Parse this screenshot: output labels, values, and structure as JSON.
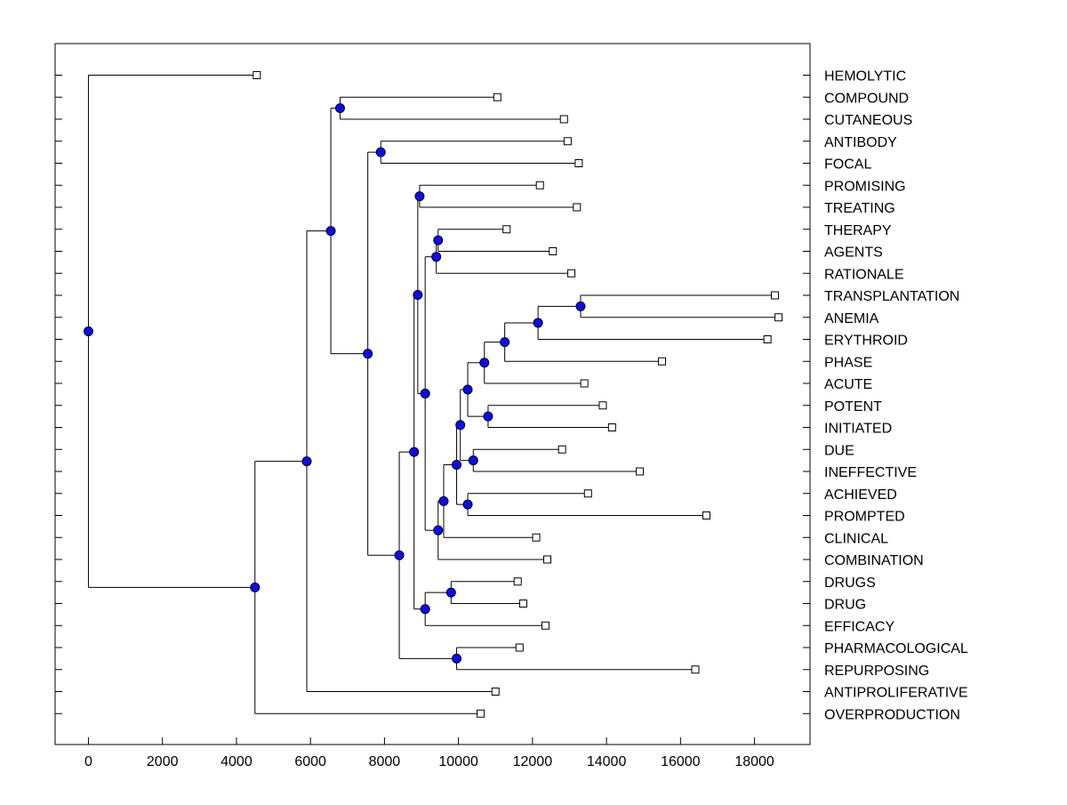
{
  "chart_data": {
    "type": "dendrogram",
    "orientation": "horizontal",
    "xlim": [
      -900,
      19500
    ],
    "x_ticks": [
      0,
      2000,
      4000,
      6000,
      8000,
      10000,
      12000,
      14000,
      16000,
      18000
    ],
    "x_tick_labels": [
      "0",
      "2000",
      "4000",
      "6000",
      "8000",
      "10000",
      "12000",
      "14000",
      "16000",
      "18000"
    ],
    "leaves": [
      {
        "label": "HEMOLYTIC",
        "x": 4550
      },
      {
        "label": "COMPOUND",
        "x": 11050
      },
      {
        "label": "CUTANEOUS",
        "x": 12850
      },
      {
        "label": "ANTIBODY",
        "x": 12950
      },
      {
        "label": "FOCAL",
        "x": 13250
      },
      {
        "label": "PROMISING",
        "x": 12200
      },
      {
        "label": "TREATING",
        "x": 13200
      },
      {
        "label": "THERAPY",
        "x": 11300
      },
      {
        "label": "AGENTS",
        "x": 12550
      },
      {
        "label": "RATIONALE",
        "x": 13050
      },
      {
        "label": "TRANSPLANTATION",
        "x": 18550
      },
      {
        "label": "ANEMIA",
        "x": 18650
      },
      {
        "label": "ERYTHROID",
        "x": 18350
      },
      {
        "label": "PHASE",
        "x": 15500
      },
      {
        "label": "ACUTE",
        "x": 13400
      },
      {
        "label": "POTENT",
        "x": 13900
      },
      {
        "label": "INITIATED",
        "x": 14150
      },
      {
        "label": "DUE",
        "x": 12800
      },
      {
        "label": "INEFFECTIVE",
        "x": 14900
      },
      {
        "label": "ACHIEVED",
        "x": 13500
      },
      {
        "label": "PROMPTED",
        "x": 16700
      },
      {
        "label": "CLINICAL",
        "x": 12100
      },
      {
        "label": "COMBINATION",
        "x": 12400
      },
      {
        "label": "DRUGS",
        "x": 11600
      },
      {
        "label": "DRUG",
        "x": 11750
      },
      {
        "label": "EFFICACY",
        "x": 12350
      },
      {
        "label": "PHARMACOLOGICAL",
        "x": 11650
      },
      {
        "label": "REPURPOSING",
        "x": 16400
      },
      {
        "label": "ANTIPROLIFERATIVE",
        "x": 11000
      },
      {
        "label": "OVERPRODUCTION",
        "x": 10600
      }
    ],
    "merges": [
      {
        "id": "n1",
        "x": 13300,
        "children": [
          "TRANSPLANTATION",
          "ANEMIA"
        ]
      },
      {
        "id": "n2",
        "x": 12150,
        "children": [
          "n1",
          "ERYTHROID"
        ]
      },
      {
        "id": "n3",
        "x": 11250,
        "children": [
          "n2",
          "PHASE"
        ]
      },
      {
        "id": "n4",
        "x": 10700,
        "children": [
          "n3",
          "ACUTE"
        ]
      },
      {
        "id": "n5",
        "x": 10800,
        "children": [
          "POTENT",
          "INITIATED"
        ]
      },
      {
        "id": "n6",
        "x": 10250,
        "children": [
          "n4",
          "n5"
        ]
      },
      {
        "id": "n7",
        "x": 10400,
        "children": [
          "DUE",
          "INEFFECTIVE"
        ]
      },
      {
        "id": "n8",
        "x": 10050,
        "children": [
          "n6",
          "n7"
        ]
      },
      {
        "id": "n9",
        "x": 10250,
        "children": [
          "ACHIEVED",
          "PROMPTED"
        ]
      },
      {
        "id": "n10",
        "x": 9950,
        "children": [
          "n8",
          "n9"
        ]
      },
      {
        "id": "n11",
        "x": 9600,
        "children": [
          "n10",
          "CLINICAL"
        ]
      },
      {
        "id": "n12",
        "x": 9450,
        "children": [
          "n11",
          "COMBINATION"
        ]
      },
      {
        "id": "n13",
        "x": 9450,
        "children": [
          "THERAPY",
          "AGENTS"
        ]
      },
      {
        "id": "n14",
        "x": 9400,
        "children": [
          "n13",
          "RATIONALE"
        ]
      },
      {
        "id": "n15",
        "x": 9100,
        "children": [
          "n14",
          "n12"
        ]
      },
      {
        "id": "n16",
        "x": 8950,
        "children": [
          "PROMISING",
          "TREATING"
        ]
      },
      {
        "id": "n17",
        "x": 8900,
        "children": [
          "n16",
          "n15"
        ]
      },
      {
        "id": "n18",
        "x": 9800,
        "children": [
          "DRUGS",
          "DRUG"
        ]
      },
      {
        "id": "n19",
        "x": 9100,
        "children": [
          "n18",
          "EFFICACY"
        ]
      },
      {
        "id": "n20",
        "x": 8800,
        "children": [
          "n17",
          "n19"
        ]
      },
      {
        "id": "n21",
        "x": 9950,
        "children": [
          "PHARMACOLOGICAL",
          "REPURPOSING"
        ]
      },
      {
        "id": "n22",
        "x": 8400,
        "children": [
          "n20",
          "n21"
        ]
      },
      {
        "id": "n23",
        "x": 7900,
        "children": [
          "ANTIBODY",
          "FOCAL"
        ]
      },
      {
        "id": "n24",
        "x": 7550,
        "children": [
          "n23",
          "n22"
        ]
      },
      {
        "id": "n25",
        "x": 6800,
        "children": [
          "COMPOUND",
          "CUTANEOUS"
        ]
      },
      {
        "id": "n26",
        "x": 6550,
        "children": [
          "n25",
          "n24"
        ]
      },
      {
        "id": "n27",
        "x": 5900,
        "children": [
          "n26",
          "ANTIPROLIFERATIVE"
        ]
      },
      {
        "id": "n28",
        "x": 4500,
        "children": [
          "n27",
          "OVERPRODUCTION"
        ]
      },
      {
        "id": "n29",
        "x": 0,
        "children": [
          "HEMOLYTIC",
          "n28"
        ]
      }
    ],
    "colors": {
      "node_fill": "#0a0aff",
      "leaf_fill": "#ffffff",
      "line": "#000000"
    }
  }
}
